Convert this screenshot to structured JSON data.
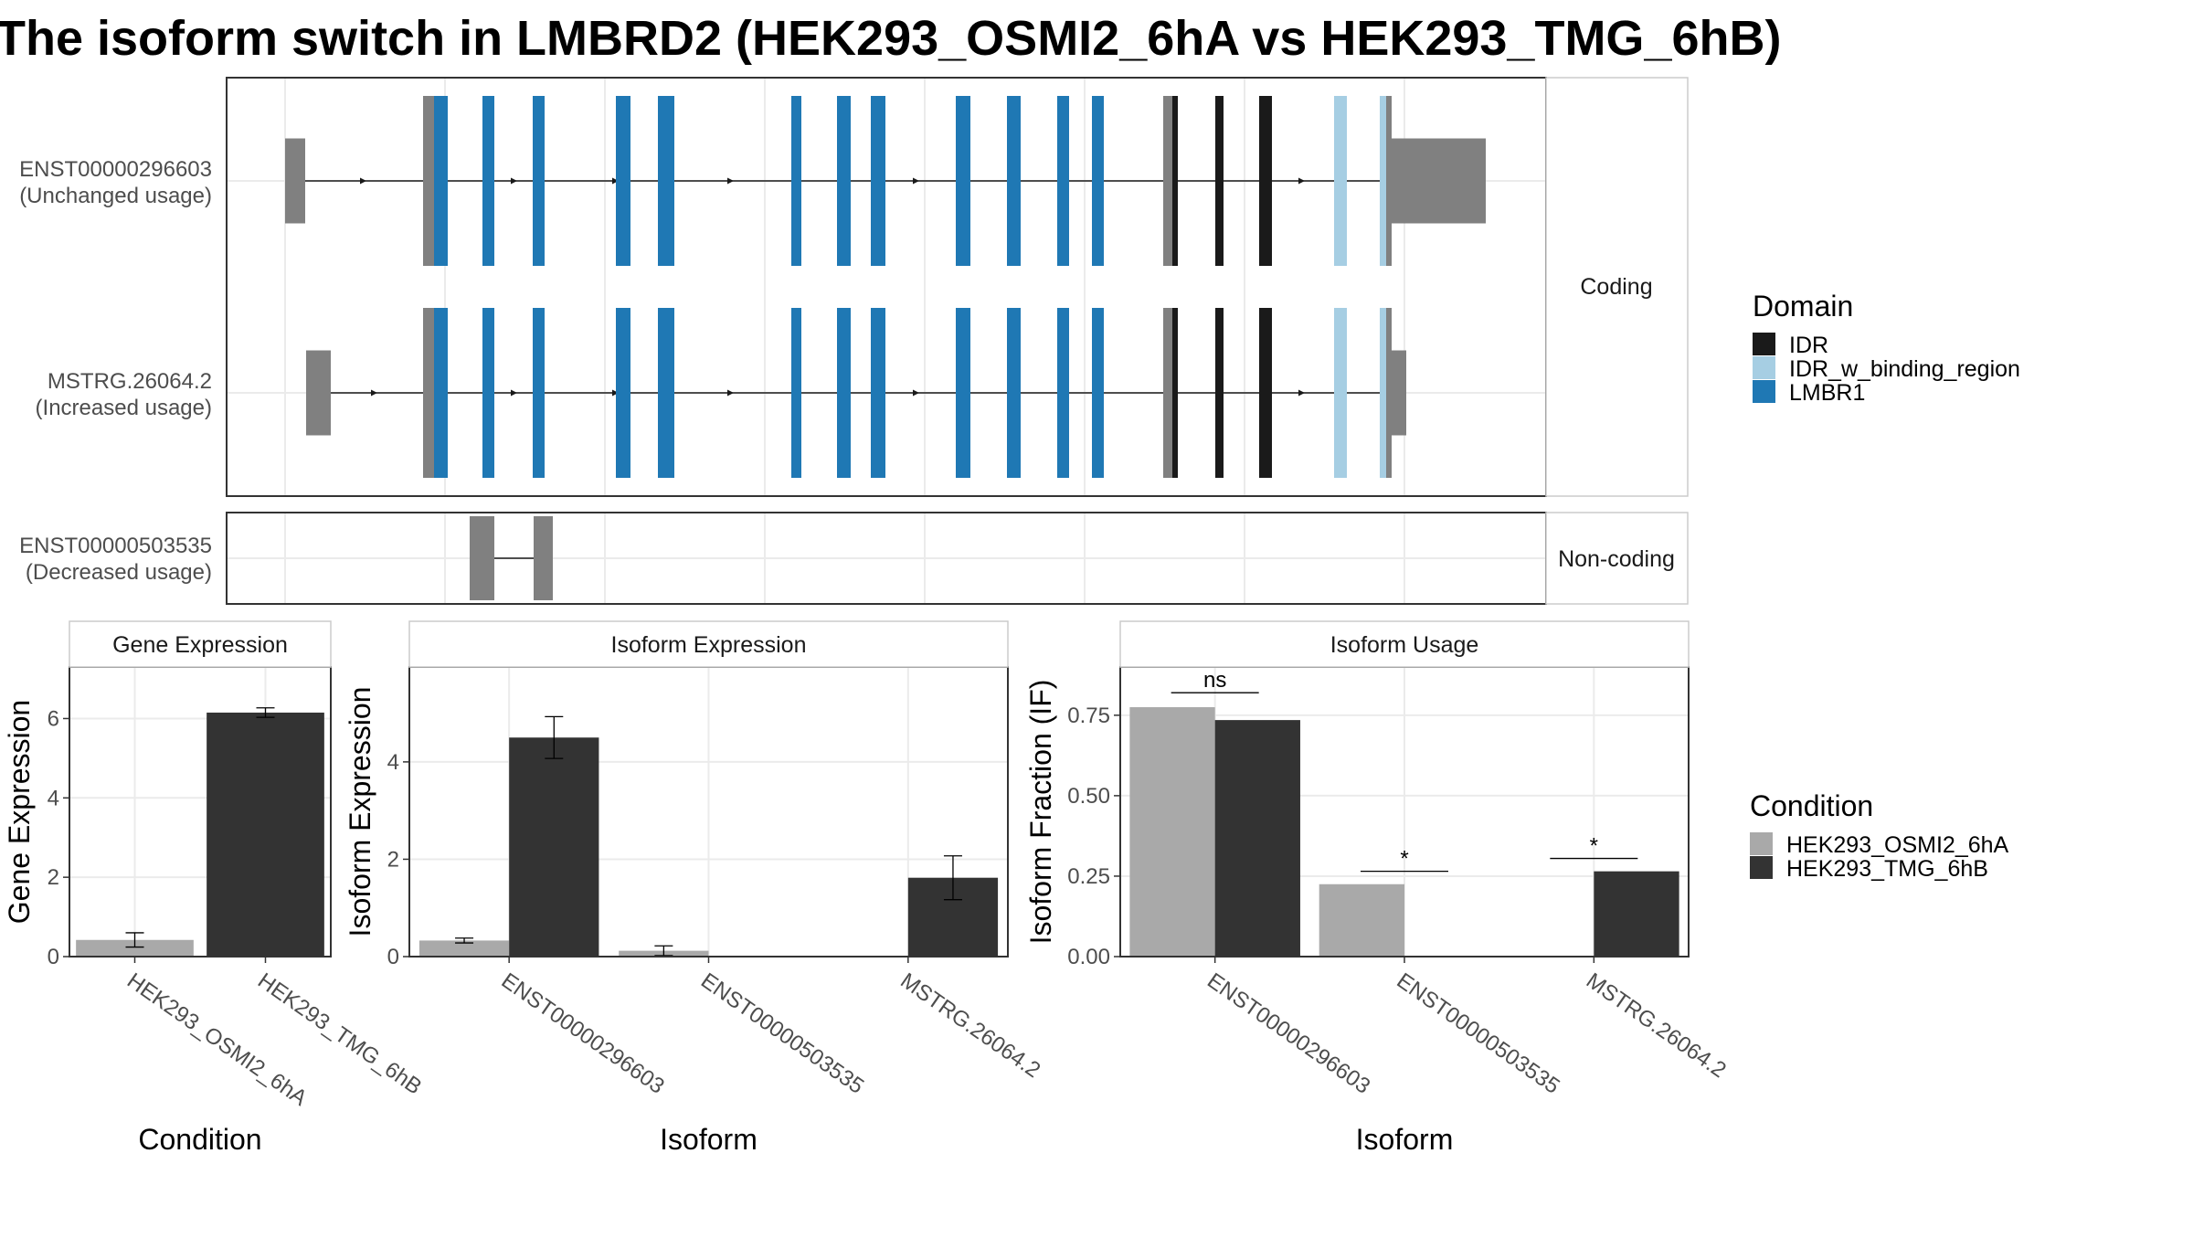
{
  "title": "The isoform switch in LMBRD2 (HEK293_OSMI2_6hA vs HEK293_TMG_6hB)",
  "colors": {
    "IDR": "#1a1a1a",
    "IDR_w_binding_region": "#a6cee3",
    "LMBR1": "#1f78b4",
    "noncoding_exon": "#808080",
    "HEK293_OSMI2_6hA": "#a9a9a9",
    "HEK293_TMG_6hB": "#333333"
  },
  "structure_panels": [
    {
      "strip": "Coding",
      "transcripts": [
        {
          "id": "ENST00000296603",
          "usage": "(Unchanged usage)"
        },
        {
          "id": "MSTRG.26064.2",
          "usage": "(Increased usage)"
        }
      ]
    },
    {
      "strip": "Non-coding",
      "transcripts": [
        {
          "id": "ENST00000503535",
          "usage": "(Decreased usage)"
        }
      ]
    }
  ],
  "domain_legend": {
    "title": "Domain",
    "items": [
      {
        "label": "IDR",
        "color": "#1a1a1a"
      },
      {
        "label": "IDR_w_binding_region",
        "color": "#a6cee3"
      },
      {
        "label": "LMBR1",
        "color": "#1f78b4"
      }
    ]
  },
  "condition_legend": {
    "title": "Condition",
    "items": [
      {
        "label": "HEK293_OSMI2_6hA",
        "color": "#a9a9a9"
      },
      {
        "label": "HEK293_TMG_6hB",
        "color": "#333333"
      }
    ]
  },
  "chart_data": [
    {
      "type": "bar",
      "title": "Gene Expression",
      "xlabel": "Condition",
      "ylabel": "Gene Expression",
      "ylim": [
        0,
        7.3
      ],
      "yticks": [
        "0",
        "2",
        "4",
        "6"
      ],
      "categories": [
        "HEK293_OSMI2_6hA",
        "HEK293_TMG_6hB"
      ],
      "values": [
        0.42,
        6.15
      ],
      "errors": [
        0.18,
        0.12
      ]
    },
    {
      "type": "bar",
      "title": "Isoform Expression",
      "xlabel": "Isoform",
      "ylabel": "Isoform Expression",
      "ylim": [
        0,
        5.95
      ],
      "yticks": [
        "0",
        "2",
        "4"
      ],
      "categories": [
        "ENST00000296603",
        "ENST00000503535",
        "MSTRG.26064.2"
      ],
      "series": [
        {
          "name": "HEK293_OSMI2_6hA",
          "values": [
            0.33,
            0.12,
            0.0
          ],
          "errors": [
            0.05,
            0.1,
            0.0
          ]
        },
        {
          "name": "HEK293_TMG_6hB",
          "values": [
            4.5,
            0.0,
            1.62
          ],
          "errors": [
            0.43,
            0.0,
            0.45
          ]
        }
      ]
    },
    {
      "type": "bar",
      "title": "Isoform Usage",
      "xlabel": "Isoform",
      "ylabel": "Isoform Fraction (IF)",
      "ylim": [
        0,
        0.9
      ],
      "yticks": [
        "0.00",
        "0.25",
        "0.50",
        "0.75"
      ],
      "categories": [
        "ENST00000296603",
        "ENST00000503535",
        "MSTRG.26064.2"
      ],
      "series": [
        {
          "name": "HEK293_OSMI2_6hA",
          "values": [
            0.775,
            0.225,
            0.0
          ]
        },
        {
          "name": "HEK293_TMG_6hB",
          "values": [
            0.735,
            0.0,
            0.265
          ]
        }
      ],
      "significance": [
        {
          "label": "ns",
          "y": 0.82
        },
        {
          "label": "*",
          "y": 0.265
        },
        {
          "label": "*",
          "y": 0.305
        }
      ]
    }
  ]
}
